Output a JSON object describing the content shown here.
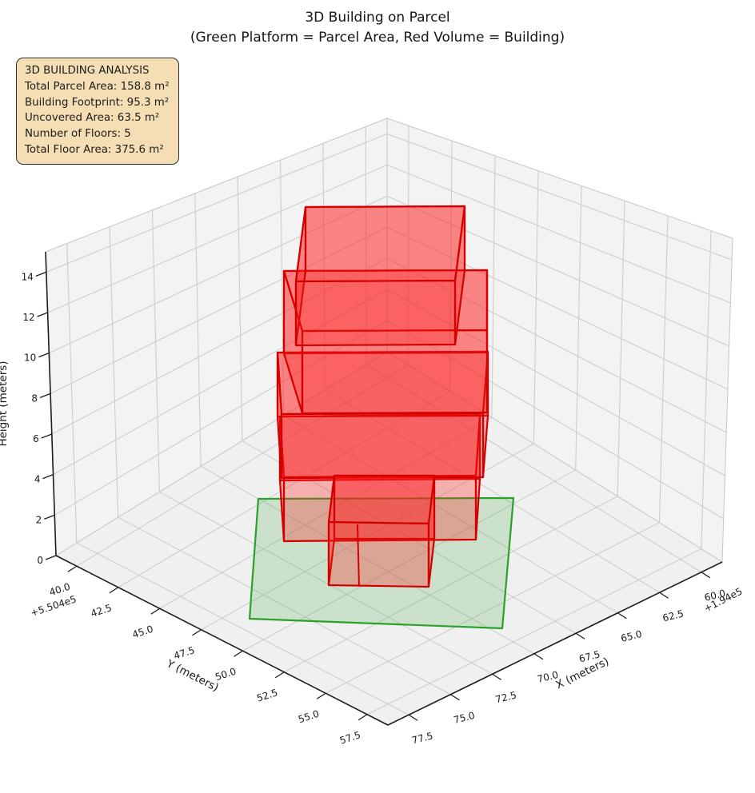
{
  "title": {
    "line1": "3D Building on Parcel",
    "line2": "(Green Platform = Parcel Area, Red Volume = Building)"
  },
  "info_box": {
    "lines": [
      "3D BUILDING ANALYSIS",
      "Total Parcel Area: 158.8 m²",
      "Building Footprint: 95.3 m²",
      "Uncovered Area: 63.5 m²",
      "Number of Floors: 5",
      "Total Floor Area: 375.6 m²"
    ]
  },
  "axes": {
    "x": {
      "label": "X (meters)",
      "offset": "+1.94e5",
      "min": 58.75,
      "max": 78.75,
      "tick_values": [
        60.0,
        62.5,
        65.0,
        67.5,
        70.0,
        72.5,
        75.0,
        77.5
      ],
      "tick_labels": [
        "60.0",
        "62.5",
        "65.0",
        "67.5",
        "70.0",
        "72.5",
        "75.0",
        "77.5"
      ]
    },
    "y": {
      "label": "Y (meters)",
      "offset": "+5.504e5",
      "min": 38.75,
      "max": 58.75,
      "tick_values": [
        40.0,
        42.5,
        45.0,
        47.5,
        50.0,
        52.5,
        55.0,
        57.5
      ],
      "tick_labels": [
        "40.0",
        "42.5",
        "45.0",
        "47.5",
        "50.0",
        "52.5",
        "55.0",
        "57.5"
      ]
    },
    "z": {
      "label": "Height (meters)",
      "min": 0,
      "max": 15,
      "tick_values": [
        0,
        2,
        4,
        6,
        8,
        10,
        12,
        14
      ],
      "tick_labels": [
        "0",
        "2",
        "4",
        "6",
        "8",
        "10",
        "12",
        "14"
      ]
    }
  },
  "colors": {
    "building_edge": "#d40000",
    "building_fill": "#ff1a1a",
    "parcel_edge": "#28a228",
    "parcel_fill": "#2aa22a",
    "pane_wall": "#f3f3f3",
    "pane_floor": "#f0f0f0",
    "grid_line": "#cdcdcd",
    "pane_outline": "#c6c6c6",
    "spine": "#1c1c1c",
    "info_bg": "#f5deb3"
  },
  "chart_data": {
    "type": "3d",
    "title": "3D Building on Parcel",
    "subtitle": "(Green Platform = Parcel Area, Red Volume = Building)",
    "x_axis": {
      "label": "X (meters)",
      "range": [
        58.75,
        78.75
      ],
      "ticks": [
        60.0,
        62.5,
        65.0,
        67.5,
        70.0,
        72.5,
        75.0,
        77.5
      ],
      "offset_text": "+1.94e5"
    },
    "y_axis": {
      "label": "Y (meters)",
      "range": [
        38.75,
        58.75
      ],
      "ticks": [
        40.0,
        42.5,
        45.0,
        47.5,
        50.0,
        52.5,
        55.0,
        57.5
      ],
      "offset_text": "+5.504e5"
    },
    "z_axis": {
      "label": "Height (meters)",
      "range": [
        0,
        15
      ],
      "ticks": [
        0,
        2,
        4,
        6,
        8,
        10,
        12,
        14
      ]
    },
    "grid": true,
    "legend_position": "none",
    "annotation_box": {
      "heading": "3D BUILDING ANALYSIS",
      "total_parcel_area_m2": 158.8,
      "building_footprint_m2": 95.3,
      "uncovered_area_m2": 63.5,
      "number_of_floors": 5,
      "total_floor_area_m2": 375.6
    },
    "parcel": {
      "color": "green",
      "shape": "rotated quadrilateral platform at z = 0",
      "area_m2": 158.8
    },
    "building": {
      "color": "red",
      "footprint_m2": 95.3,
      "floors": 5,
      "floor_height_m": 3,
      "height_m": 15,
      "total_floor_area_m2": 375.6,
      "structure": "small ground-floor block at front plus 4-storey tower from 3 m to 15 m"
    }
  }
}
